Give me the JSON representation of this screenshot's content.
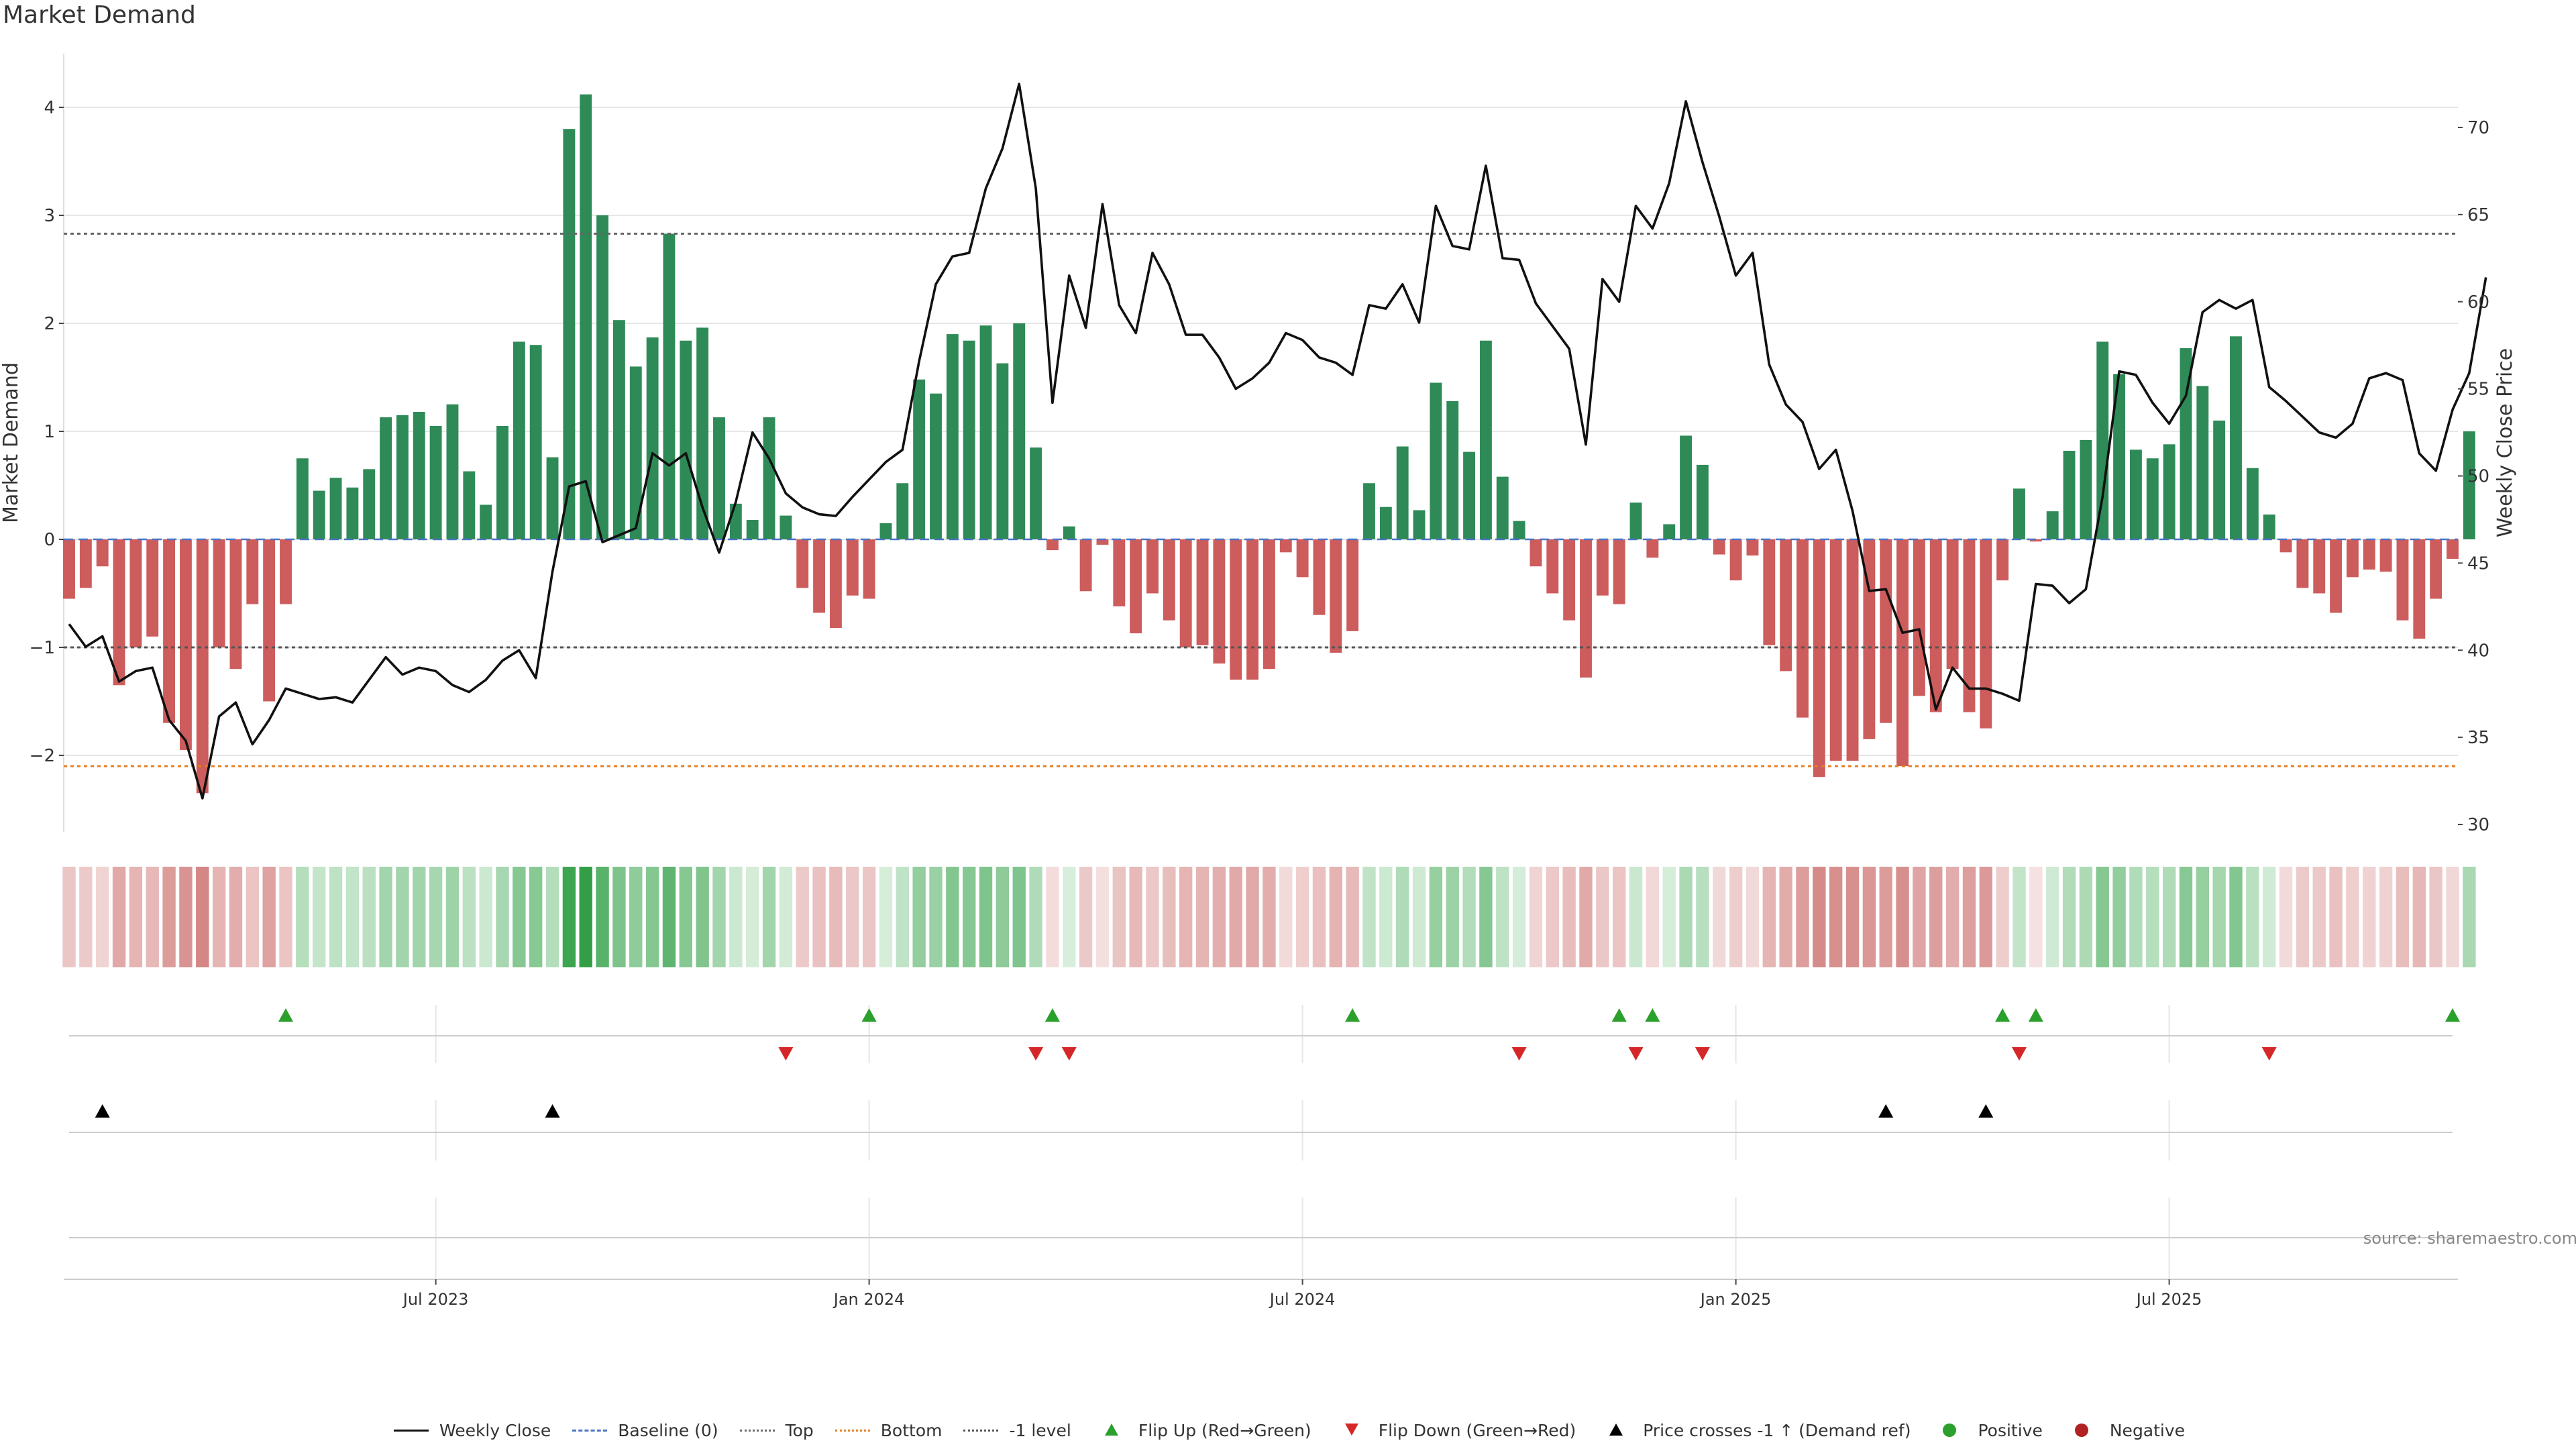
{
  "title": "Market Demand",
  "source_note": "source: sharemaestro.com",
  "colors": {
    "positive_bar": "#2e8b57",
    "negative_bar": "#cd5c5c",
    "price_line": "#111111",
    "top_line": "#666666",
    "bottom_line": "#e67e22",
    "neg1_line": "#555555",
    "baseline": "#4a74c4",
    "flip_up": "#2ca02c",
    "flip_down": "#d62728",
    "cross": "#000000",
    "heat_pos": "#2f9e44",
    "heat_neg": "#c0504d",
    "grid": "#e6e6e6"
  },
  "chart_data": {
    "type": "bar",
    "title": "Market Demand",
    "ylabel": "Market Demand",
    "y2label": "Weekly Close Price",
    "ylim": [
      -2.7,
      4.4
    ],
    "y2lim": [
      29,
      74
    ],
    "yticks": [
      -2,
      -1,
      0,
      1,
      2,
      3,
      4
    ],
    "yticklabels": [
      "−2",
      "−1",
      "0",
      "1",
      "2",
      "3",
      "4"
    ],
    "y2ticks": [
      30,
      35,
      40,
      45,
      50,
      55,
      60,
      65,
      70
    ],
    "x_tick_labels": [
      "Jul 2023",
      "Jan 2024",
      "Jul 2024",
      "Jan 2025",
      "Jul 2025"
    ],
    "x_tick_weeks": [
      22,
      48,
      74,
      100,
      126
    ],
    "levels": {
      "top": 2.83,
      "bottom": -2.1,
      "minus_one": -1.0,
      "baseline": 0
    },
    "weeks": 144,
    "demand": [
      -0.55,
      -0.45,
      -0.25,
      -1.35,
      -1.0,
      -0.9,
      -1.7,
      -1.95,
      -2.35,
      -1.0,
      -1.2,
      -0.6,
      -1.5,
      -0.6,
      0.75,
      0.45,
      0.57,
      0.48,
      0.65,
      1.13,
      1.15,
      1.18,
      1.05,
      1.25,
      0.63,
      0.32,
      1.05,
      1.83,
      1.8,
      0.76,
      3.8,
      4.12,
      3.0,
      2.03,
      1.6,
      1.87,
      2.83,
      1.84,
      1.96,
      1.13,
      0.33,
      0.18,
      1.13,
      0.22,
      -0.45,
      -0.68,
      -0.82,
      -0.52,
      -0.55,
      0.15,
      0.52,
      1.48,
      1.35,
      1.9,
      1.84,
      1.98,
      1.63,
      2.0,
      0.85,
      -0.1,
      0.12,
      -0.48,
      -0.05,
      -0.62,
      -0.87,
      -0.5,
      -0.75,
      -1.0,
      -0.98,
      -1.15,
      -1.3,
      -1.3,
      -1.2,
      -0.12,
      -0.35,
      -0.7,
      -1.05,
      -0.85,
      0.52,
      0.3,
      0.86,
      0.27,
      1.45,
      1.28,
      0.81,
      1.84,
      0.58,
      0.17,
      -0.25,
      -0.5,
      -0.75,
      -1.28,
      -0.52,
      -0.6,
      0.34,
      -0.17,
      0.14,
      0.96,
      0.69,
      -0.14,
      -0.38,
      -0.15,
      -0.98,
      -1.22,
      -1.65,
      -2.2,
      -2.05,
      -2.05,
      -1.85,
      -1.7,
      -2.1,
      -1.45,
      -1.6,
      -1.2,
      -1.6,
      -1.75,
      -0.38,
      0.47,
      -0.02,
      0.26,
      0.82,
      0.92,
      1.83,
      1.53,
      0.83,
      0.75,
      0.88,
      1.77,
      1.42,
      1.1,
      1.88,
      0.66,
      0.23,
      -0.12,
      -0.45,
      -0.5,
      -0.68,
      -0.35,
      -0.28,
      -0.3,
      -0.75,
      -0.92,
      -0.55,
      -0.18,
      1.0
    ],
    "price": [
      41.5,
      40.2,
      40.8,
      38.2,
      38.8,
      39.0,
      36.0,
      34.8,
      31.5,
      36.2,
      37.0,
      34.6,
      36.0,
      37.8,
      37.5,
      37.2,
      37.3,
      37.0,
      38.3,
      39.6,
      38.6,
      39.0,
      38.8,
      38.0,
      37.6,
      38.3,
      39.4,
      40.0,
      38.4,
      44.5,
      49.4,
      49.7,
      46.2,
      46.6,
      47.0,
      51.3,
      50.6,
      51.3,
      48.2,
      45.6,
      48.5,
      52.5,
      51.0,
      49.0,
      48.2,
      47.8,
      47.7,
      48.8,
      49.8,
      50.8,
      51.5,
      56.6,
      61.0,
      62.6,
      62.8,
      66.5,
      68.8,
      72.5,
      66.5,
      54.2,
      61.5,
      58.5,
      65.6,
      59.8,
      58.2,
      62.8,
      61.0,
      58.1,
      58.1,
      56.8,
      55.0,
      55.6,
      56.5,
      58.2,
      57.8,
      56.8,
      56.5,
      55.8,
      59.8,
      59.6,
      61.0,
      58.8,
      65.5,
      63.2,
      63.0,
      67.8,
      62.5,
      62.4,
      59.9,
      58.6,
      57.3,
      51.8,
      61.3,
      60.0,
      65.5,
      64.2,
      66.8,
      71.5,
      68.0,
      64.9,
      61.5,
      62.8,
      56.4,
      54.1,
      53.1,
      50.4,
      51.5,
      48.0,
      43.4,
      43.5,
      41.0,
      41.2,
      36.6,
      39.0,
      37.8,
      37.8,
      37.5,
      37.1,
      43.8,
      43.7,
      42.7,
      43.5,
      48.8,
      56.0,
      55.8,
      54.2,
      53.0,
      54.6,
      59.4,
      60.1,
      59.6,
      60.1,
      55.1,
      54.3,
      53.4,
      52.5,
      52.2,
      53.0,
      55.6,
      55.9,
      55.5,
      51.3,
      50.3,
      53.8,
      55.9,
      61.4
    ],
    "flip_up_weeks": [
      13,
      48,
      59,
      77,
      93,
      95,
      116,
      118,
      143
    ],
    "flip_down_weeks": [
      43,
      58,
      60,
      87,
      94,
      98,
      117,
      132
    ],
    "price_cross_weeks": [
      2,
      29,
      109,
      115
    ]
  },
  "legend": [
    {
      "label": "Weekly Close",
      "symbol": "line",
      "color": "#111111",
      "dash": "solid"
    },
    {
      "label": "Baseline (0)",
      "symbol": "line",
      "color": "#4a74c4",
      "dash": "dashed"
    },
    {
      "label": "Top",
      "symbol": "line",
      "color": "#666666",
      "dash": "dotted"
    },
    {
      "label": "Bottom",
      "symbol": "line",
      "color": "#e67e22",
      "dash": "dotted"
    },
    {
      "label": "-1 level",
      "symbol": "line",
      "color": "#555555",
      "dash": "dotted"
    },
    {
      "label": "Flip Up (Red→Green)",
      "symbol": "tri-up",
      "color": "#2ca02c"
    },
    {
      "label": "Flip Down (Green→Red)",
      "symbol": "tri-down",
      "color": "#d62728"
    },
    {
      "label": "Price crosses -1 ↑ (Demand ref)",
      "symbol": "tri-up",
      "color": "#000000"
    },
    {
      "label": "Positive",
      "symbol": "dot",
      "color": "#2ca02c"
    },
    {
      "label": "Negative",
      "symbol": "dot",
      "color": "#b22222"
    }
  ]
}
